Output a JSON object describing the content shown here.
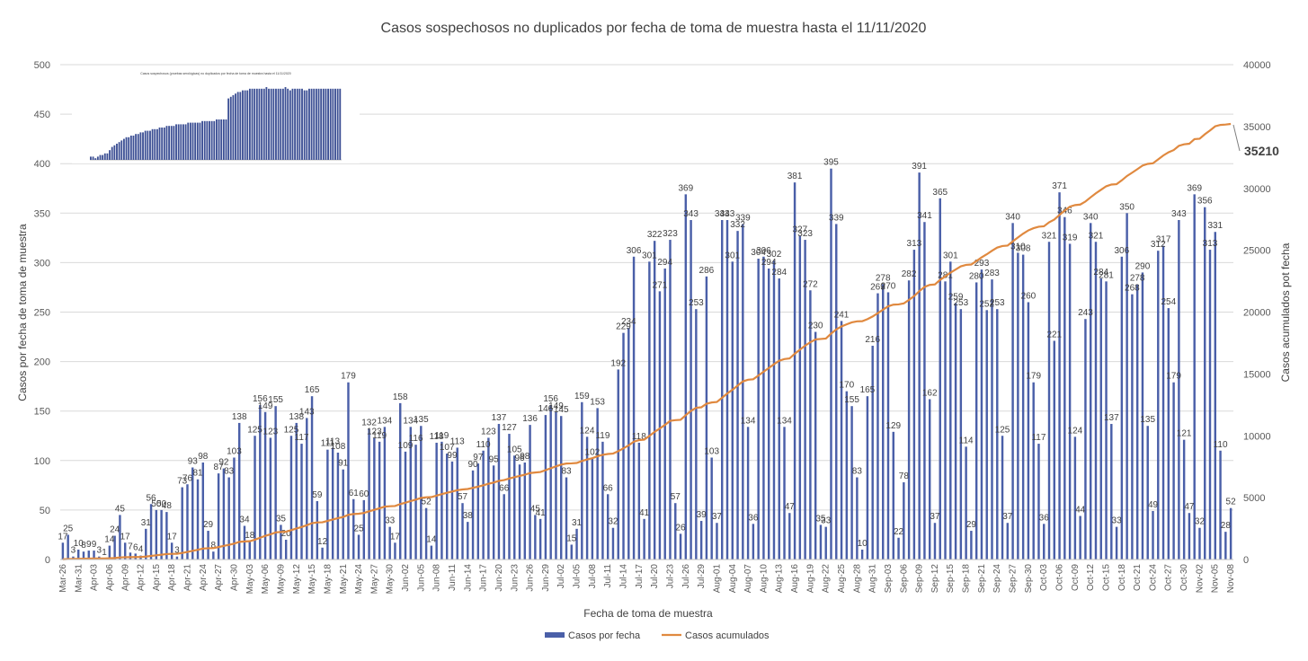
{
  "chart_data": {
    "type": "bar",
    "title": "Casos sospechosos no duplicados por fecha de toma de muestra hasta el  11/11/2020",
    "xlabel": "Fecha de toma de muestra",
    "ylabel": "Casos por fecha de toma de muestra",
    "y2label": "Casos acumulados pot fecha",
    "ylim": [
      0,
      500
    ],
    "y2lim": [
      0,
      40000
    ],
    "yticks": [
      "0",
      "50",
      "100",
      "150",
      "200",
      "250",
      "300",
      "350",
      "400",
      "450",
      "500"
    ],
    "y2ticks": [
      "0",
      "5000",
      "10000",
      "15000",
      "20000",
      "25000",
      "30000",
      "35000",
      "40000"
    ],
    "final_cumulative_label": "35210",
    "final_cumulative": 35210,
    "grid": true,
    "legend_position": "bottom",
    "colors": {
      "bars": "#4a5fa8",
      "line": "#e0893f"
    },
    "series": [
      {
        "name": "Casos por fecha",
        "type": "bar",
        "values": [
          17,
          25,
          3,
          10,
          8,
          9,
          9,
          3,
          1,
          14,
          24,
          45,
          17,
          7,
          6,
          4,
          31,
          56,
          50,
          50,
          48,
          17,
          3,
          73,
          76,
          93,
          81,
          98,
          29,
          8,
          87,
          92,
          83,
          103,
          138,
          34,
          18,
          125,
          156,
          149,
          123,
          155,
          35,
          20,
          125,
          138,
          117,
          143,
          165,
          59,
          12,
          111,
          113,
          108,
          91,
          179,
          61,
          25,
          60,
          132,
          123,
          119,
          134,
          33,
          17,
          158,
          109,
          134,
          116,
          135,
          52,
          14,
          118,
          119,
          107,
          99,
          113,
          57,
          38,
          90,
          97,
          110,
          123,
          95,
          137,
          66,
          127,
          105,
          96,
          98,
          136,
          45,
          41,
          146,
          156,
          149,
          145,
          83,
          15,
          31,
          159,
          124,
          102,
          153,
          119,
          66,
          32,
          192,
          229,
          234,
          306,
          118,
          41,
          301,
          322,
          271,
          294,
          323,
          57,
          26,
          369,
          343,
          253,
          39,
          286,
          103,
          37,
          343,
          343,
          301,
          332,
          339,
          134,
          36,
          304,
          306,
          294,
          302,
          284,
          134,
          47,
          381,
          327,
          323,
          272,
          230,
          35,
          33,
          395,
          339,
          241,
          170,
          155,
          83,
          10,
          165,
          216,
          269,
          278,
          270,
          129,
          22,
          78,
          282,
          313,
          391,
          341,
          162,
          37,
          365,
          281,
          301,
          259,
          253,
          114,
          29,
          280,
          293,
          252,
          283,
          253,
          125,
          37,
          340,
          310,
          308,
          260,
          179,
          117,
          36,
          321,
          221,
          371,
          346,
          319,
          124,
          44,
          243,
          340,
          321,
          284,
          281,
          137,
          33,
          306,
          350,
          268,
          278,
          290,
          135,
          49,
          312,
          317,
          254,
          179,
          343,
          121,
          47,
          369,
          32,
          356,
          313,
          331,
          110,
          28,
          52
        ]
      },
      {
        "name": "Casos acumulados",
        "type": "line",
        "values": []
      }
    ],
    "x_tick_labels": [
      "Mar-26",
      "Mar-31",
      "Apr-03",
      "Apr-06",
      "Apr-09",
      "Apr-12",
      "Apr-15",
      "Apr-18",
      "Apr-21",
      "Apr-24",
      "Apr-27",
      "Apr-30",
      "May-03",
      "May-06",
      "May-09",
      "May-12",
      "May-15",
      "May-18",
      "May-21",
      "May-24",
      "May-27",
      "May-30",
      "Jun-02",
      "Jun-05",
      "Jun-08",
      "Jun-11",
      "Jun-14",
      "Jun-17",
      "Jun-20",
      "Jun-23",
      "Jun-26",
      "Jun-29",
      "Jul-02",
      "Jul-05",
      "Jul-08",
      "Jul-11",
      "Jul-14",
      "Jul-17",
      "Jul-20",
      "Jul-23",
      "Jul-26",
      "Jul-29",
      "Aug-01",
      "Aug-04",
      "Aug-07",
      "Aug-10",
      "Aug-13",
      "Aug-16",
      "Aug-19",
      "Aug-22",
      "Aug-25",
      "Aug-28",
      "Aug-31",
      "Sep-03",
      "Sep-06",
      "Sep-09",
      "Sep-12",
      "Sep-15",
      "Sep-18",
      "Sep-21",
      "Sep-24",
      "Sep-27",
      "Sep-30",
      "Oct-03",
      "Oct-06",
      "Oct-09",
      "Oct-12",
      "Oct-15",
      "Oct-18",
      "Oct-21",
      "Oct-24",
      "Oct-27",
      "Oct-30",
      "Nov-02",
      "Nov-05",
      "Nov-08"
    ]
  },
  "inset": {
    "title": "Casos sospechosos (pruebas serológicas) no duplicados por fecha de toma de muestra hasta el 11/11/2020",
    "values": [
      2,
      2,
      1,
      2,
      3,
      3,
      4,
      4,
      6,
      8,
      9,
      10,
      11,
      12,
      13,
      14,
      14,
      15,
      15,
      16,
      16,
      17,
      17,
      18,
      18,
      18,
      19,
      19,
      19,
      20,
      20,
      20,
      21,
      21,
      21,
      21,
      22,
      22,
      22,
      22,
      22,
      23,
      23,
      23,
      23,
      23,
      23,
      24,
      24,
      24,
      24,
      24,
      24,
      25,
      25,
      25,
      25,
      25,
      38,
      39,
      40,
      41,
      42,
      42,
      43,
      43,
      43,
      44,
      44,
      44,
      44,
      44,
      44,
      44,
      45,
      44,
      44,
      44,
      44,
      44,
      44,
      44,
      45,
      44,
      43,
      44,
      44,
      44,
      44,
      44,
      43,
      43,
      44,
      44,
      44,
      44,
      44,
      44,
      44,
      44,
      44,
      44,
      44,
      44,
      44,
      44
    ]
  }
}
